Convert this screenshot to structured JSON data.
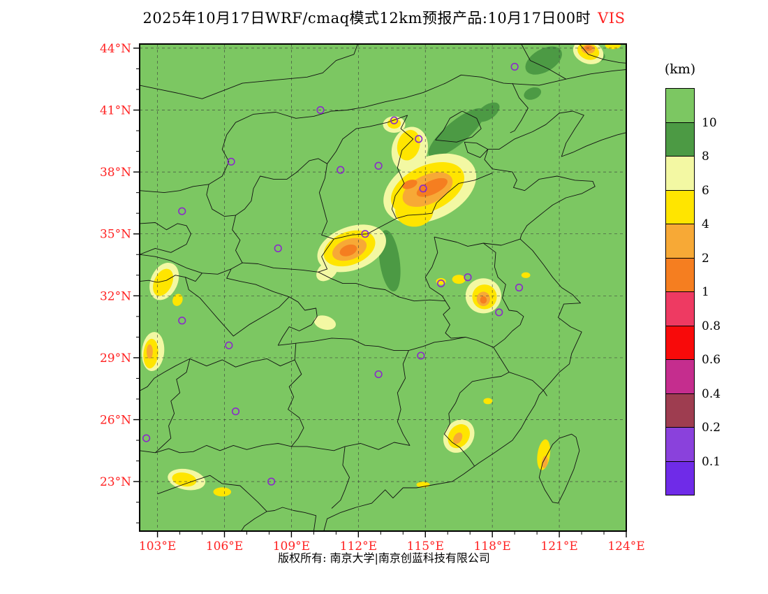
{
  "title": {
    "main": "2025年10月17日WRF/cmaq模式12km预报产品:10月17日00时",
    "highlight": "VIS"
  },
  "footer": {
    "copyright": "版权所有: 南京大学|南京创蓝科技有限公司"
  },
  "colors": {
    "axis_labels": "#FF2222",
    "title_highlight": "#FF2222",
    "marker": "#8A2BC9",
    "grid": "#3A3A3A",
    "boundary": "#111111",
    "frame": "#000000",
    "page_background": "#FFFFFF"
  },
  "chart_data": {
    "type": "heatmap",
    "title": "2025年10月17日WRF/cmaq模式12km预报产品:10月17日00时 VIS",
    "variable": "VIS",
    "unit": "km",
    "x_axis": {
      "ticks": [
        103,
        106,
        109,
        112,
        115,
        118,
        121,
        124
      ],
      "tick_labels": [
        "103°E",
        "106°E",
        "109°E",
        "112°E",
        "115°E",
        "118°E",
        "121°E",
        "124°E"
      ],
      "range": [
        102.2,
        124.0
      ]
    },
    "y_axis": {
      "ticks": [
        44,
        41,
        38,
        35,
        32,
        29,
        26,
        23
      ],
      "tick_labels": [
        "44°N",
        "41°N",
        "38°N",
        "35°N",
        "32°N",
        "29°N",
        "26°N",
        "23°N"
      ],
      "range": [
        20.6,
        44.2
      ]
    },
    "legend": {
      "title": "(km)",
      "boundary_labels": [
        "10",
        "8",
        "6",
        "4",
        "2",
        "1",
        "0.8",
        "0.6",
        "0.4",
        "0.2",
        "0.1"
      ],
      "levels": [
        {
          "range": ">10",
          "color": "#7CC762"
        },
        {
          "range": "8-10",
          "color": "#4C9A44"
        },
        {
          "range": "6-8",
          "color": "#F3F8A3"
        },
        {
          "range": "4-6",
          "color": "#FFE500"
        },
        {
          "range": "2-4",
          "color": "#F7A936"
        },
        {
          "range": "1-2",
          "color": "#F57E20"
        },
        {
          "range": "0.8-1",
          "color": "#EE3A62"
        },
        {
          "range": "0.6-0.8",
          "color": "#F80A0A"
        },
        {
          "range": "0.4-0.6",
          "color": "#C52D8E"
        },
        {
          "range": "0.2-0.4",
          "color": "#9E3D50"
        },
        {
          "range": "0.1-0.2",
          "color": "#8A41DC"
        },
        {
          "range": "<0.1",
          "color": "#6F2BE8"
        }
      ]
    },
    "background_value": ">10",
    "features": [
      [
        "8-10",
        116.4,
        39.9,
        1.6,
        0.55,
        -40
      ],
      [
        "8-10",
        117.8,
        40.9,
        0.6,
        0.35,
        -35
      ],
      [
        "8-10",
        113.4,
        33.7,
        0.45,
        1.5,
        -8
      ],
      [
        "8-10",
        120.3,
        43.4,
        0.9,
        0.55,
        -30
      ],
      [
        "8-10",
        122.6,
        43.6,
        0.45,
        0.3,
        0
      ],
      [
        "8-10",
        119.8,
        41.8,
        0.4,
        0.28,
        -20
      ],
      [
        "6-8",
        115.2,
        37.2,
        2.2,
        1.5,
        -25
      ],
      [
        "6-8",
        114.3,
        39.1,
        0.8,
        1.1,
        15
      ],
      [
        "6-8",
        111.7,
        34.3,
        1.6,
        1.05,
        -20
      ],
      [
        "6-8",
        110.6,
        33.2,
        0.55,
        0.4,
        -40
      ],
      [
        "6-8",
        117.6,
        32.0,
        0.8,
        0.85,
        0
      ],
      [
        "6-8",
        116.5,
        25.2,
        0.65,
        0.85,
        35
      ],
      [
        "6-8",
        103.3,
        32.7,
        0.6,
        0.95,
        25
      ],
      [
        "6-8",
        102.8,
        29.3,
        0.5,
        0.95,
        5
      ],
      [
        "6-8",
        104.3,
        23.1,
        0.85,
        0.5,
        10
      ],
      [
        "6-8",
        113.6,
        40.3,
        0.5,
        0.4,
        0
      ],
      [
        "6-8",
        122.3,
        43.8,
        0.7,
        0.55,
        20
      ],
      [
        "6-8",
        110.5,
        30.7,
        0.5,
        0.33,
        15
      ],
      [
        "4-6",
        115.1,
        37.2,
        1.75,
        1.1,
        -25
      ],
      [
        "4-6",
        114.5,
        36.1,
        0.85,
        0.75,
        0
      ],
      [
        "4-6",
        114.25,
        39.3,
        0.5,
        0.75,
        15
      ],
      [
        "4-6",
        113.6,
        40.35,
        0.3,
        0.25,
        0
      ],
      [
        "4-6",
        111.6,
        34.3,
        1.2,
        0.8,
        -20
      ],
      [
        "4-6",
        117.65,
        31.95,
        0.55,
        0.6,
        0
      ],
      [
        "4-6",
        116.5,
        32.8,
        0.3,
        0.22,
        0
      ],
      [
        "4-6",
        115.7,
        32.7,
        0.22,
        0.16,
        0
      ],
      [
        "4-6",
        116.5,
        25.2,
        0.45,
        0.62,
        35
      ],
      [
        "4-6",
        103.25,
        32.65,
        0.4,
        0.7,
        25
      ],
      [
        "4-6",
        102.7,
        29.2,
        0.33,
        0.72,
        5
      ],
      [
        "4-6",
        104.2,
        23.1,
        0.55,
        0.33,
        10
      ],
      [
        "4-6",
        105.9,
        22.5,
        0.4,
        0.22,
        0
      ],
      [
        "4-6",
        122.3,
        43.85,
        0.5,
        0.4,
        20
      ],
      [
        "4-6",
        123.4,
        44.15,
        0.35,
        0.2,
        0
      ],
      [
        "4-6",
        120.3,
        24.3,
        0.28,
        0.75,
        8
      ],
      [
        "4-6",
        119.5,
        33.0,
        0.2,
        0.14,
        0
      ],
      [
        "4-6",
        117.8,
        26.9,
        0.2,
        0.15,
        0
      ],
      [
        "4-6",
        114.9,
        22.85,
        0.3,
        0.14,
        0
      ],
      [
        "4-6",
        103.9,
        31.8,
        0.22,
        0.3,
        20
      ],
      [
        "2-4",
        115.1,
        37.15,
        1.2,
        0.7,
        -25
      ],
      [
        "2-4",
        111.6,
        34.25,
        0.8,
        0.5,
        -20
      ],
      [
        "2-4",
        117.6,
        31.85,
        0.3,
        0.35,
        0
      ],
      [
        "2-4",
        116.45,
        25.1,
        0.18,
        0.3,
        30
      ],
      [
        "2-4",
        122.3,
        43.95,
        0.3,
        0.22,
        0
      ],
      [
        "2-4",
        120.35,
        23.95,
        0.13,
        0.3,
        8
      ],
      [
        "2-4",
        102.65,
        29.3,
        0.14,
        0.35,
        0
      ],
      [
        "1-2",
        115.3,
        37.25,
        0.75,
        0.33,
        -25
      ],
      [
        "1-2",
        114.3,
        37.4,
        0.35,
        0.2,
        -20
      ],
      [
        "1-2",
        111.55,
        34.2,
        0.4,
        0.26,
        -20
      ],
      [
        "1-2",
        117.6,
        31.8,
        0.15,
        0.18,
        0
      ],
      [
        "1-2",
        122.3,
        44.0,
        0.18,
        0.13,
        0
      ]
    ],
    "stations": [
      [
        119.0,
        43.1
      ],
      [
        110.3,
        41.0
      ],
      [
        113.6,
        40.5
      ],
      [
        114.7,
        39.6
      ],
      [
        112.9,
        38.3
      ],
      [
        111.2,
        38.1
      ],
      [
        106.3,
        38.5
      ],
      [
        104.1,
        36.1
      ],
      [
        114.9,
        37.2
      ],
      [
        112.3,
        35.0
      ],
      [
        108.4,
        34.3
      ],
      [
        115.7,
        32.6
      ],
      [
        116.9,
        32.9
      ],
      [
        119.2,
        32.4
      ],
      [
        118.3,
        31.2
      ],
      [
        104.1,
        30.8
      ],
      [
        106.2,
        29.6
      ],
      [
        114.8,
        29.1
      ],
      [
        112.9,
        28.2
      ],
      [
        106.5,
        26.4
      ],
      [
        102.5,
        25.1
      ],
      [
        108.1,
        23.0
      ]
    ]
  }
}
